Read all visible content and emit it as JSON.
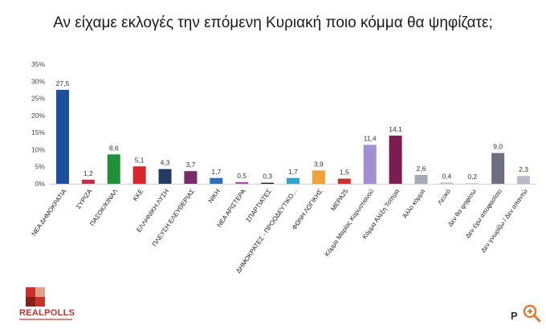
{
  "title": "Αν είχαμε εκλογές την επόμενη Κυριακή ποιο κόμμα θα ψηφίζατε;",
  "logo_text": "REALPOLLS",
  "corner_text": "P",
  "colors": {
    "accent_logo": "#c8322c"
  },
  "chart_data": {
    "type": "bar",
    "title": "Αν είχαμε εκλογές την επόμενη Κυριακή ποιο κόμμα θα ψηφίζατε;",
    "xlabel": "",
    "ylabel": "",
    "ylim": [
      0,
      35
    ],
    "yticks": [
      "0%",
      "5%",
      "10%",
      "15%",
      "20%",
      "25%",
      "30%",
      "35%"
    ],
    "grid": false,
    "categories": [
      "ΝΕΑ ΔΗΜΟΚΡΑΤΙΑ",
      "ΣΥΡΙΖΑ",
      "ΠΑΣΟΚ/ΚΙΝΑΛ",
      "ΚΚΕ",
      "ΕΛΛΗΝΙΚΗ ΛΥΣΗ",
      "ΠΛΕΥΣΗ ΕΛΕΥΘΕΡΙΑΣ",
      "ΝΙΚΗ",
      "ΝΕΑ ΑΡΙΣΤΕΡΑ",
      "ΣΠΑΡΤΙΑΤΕΣ",
      "ΔΗΜΟΚΡΑΤΕΣ - ΠΡΟΟΔΕΥΤΙΚΟ...",
      "ΦΩΝΗ ΛΟΓΙΚΗΣ",
      "ΜΕΡΑ25",
      "Κόμμα Μαρίας Καρυστιανού",
      "Κόμμα Αλέξη Τσίπρα",
      "Άλλο κόμμα",
      "Λευκό",
      "Δεν θα ψηφίσω",
      "Δεν έχω αποφασίσει",
      "Δεν γνωρίζω / Δεν απαντώ"
    ],
    "values": [
      27.5,
      1.2,
      8.6,
      5.1,
      4.3,
      3.7,
      1.7,
      0.5,
      0.3,
      1.7,
      3.9,
      1.5,
      11.4,
      14.1,
      2.6,
      0.4,
      0.2,
      9.0,
      2.3
    ],
    "labels": [
      "27,5",
      "1,2",
      "8,6",
      "5,1",
      "4,3",
      "3,7",
      "1,7",
      "0,5",
      "0,3",
      "1,7",
      "3,9",
      "1,5",
      "11,4",
      "14,1",
      "2,6",
      "0,4",
      "0,2",
      "9,0",
      "2,3"
    ],
    "bar_colors": [
      "#1f4e9a",
      "#b8324a",
      "#1f8f3a",
      "#d9262c",
      "#233a63",
      "#7a2a6a",
      "#2f6fb5",
      "#b24aa8",
      "#1c1c1c",
      "#2fa6c9",
      "#f0a23a",
      "#c8322c",
      "#a28fd0",
      "#7b1f52",
      "#a7aab5",
      "#c4c6cc",
      "#d4d6da",
      "#6b6f80",
      "#b9bcc6"
    ]
  }
}
